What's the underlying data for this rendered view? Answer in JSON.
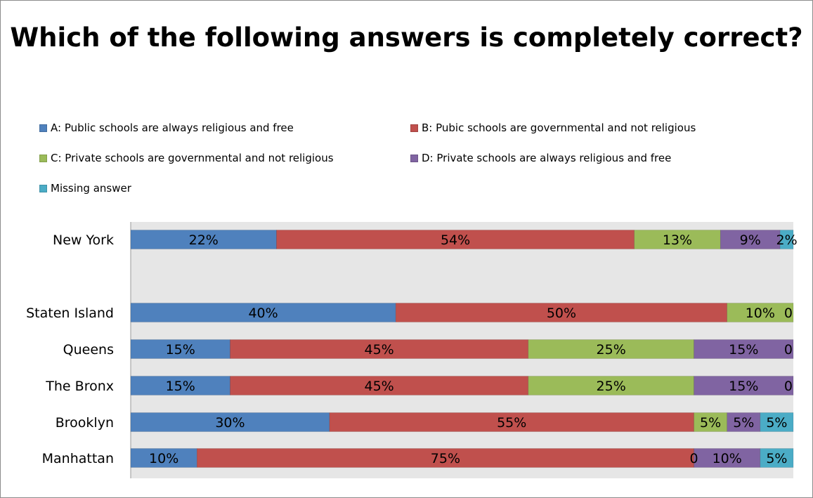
{
  "chart_data": {
    "type": "bar",
    "orientation": "horizontal",
    "stacked": true,
    "title": "Which of the following answers is completely correct?",
    "legend_position": "top",
    "grid": false,
    "xlim": [
      0,
      100
    ],
    "categories": [
      "New York",
      "",
      "Staten Island",
      "Queens",
      "The Bronx",
      "Brooklyn",
      "Manhattan"
    ],
    "series": [
      {
        "name": "A: Public schools are always religious and free",
        "color": "#4f81bd",
        "values": [
          22,
          null,
          40,
          15,
          15,
          30,
          10
        ],
        "labels": [
          "22%",
          "",
          "40%",
          "15%",
          "15%",
          "30%",
          "10%"
        ]
      },
      {
        "name": "B: Pubic schools are governmental and not religious",
        "color": "#c0504d",
        "values": [
          54,
          null,
          50,
          45,
          45,
          55,
          75
        ],
        "labels": [
          "54%",
          "",
          "50%",
          "45%",
          "45%",
          "55%",
          "75%"
        ]
      },
      {
        "name": "C: Private schools are governmental and not religious",
        "color": "#9bbb59",
        "values": [
          13,
          null,
          10,
          25,
          25,
          5,
          0
        ],
        "labels": [
          "13%",
          "",
          "10%",
          "25%",
          "25%",
          "5%",
          "0"
        ]
      },
      {
        "name": "D: Private schools are always religious and free",
        "color": "#8064a2",
        "values": [
          9,
          null,
          0,
          15,
          15,
          5,
          10
        ],
        "labels": [
          "9%",
          "",
          "0",
          "15%",
          "15%",
          "5%",
          "10%"
        ]
      },
      {
        "name": "Missing answer",
        "color": "#4bacc6",
        "values": [
          2,
          null,
          0,
          0,
          0,
          5,
          5
        ],
        "labels": [
          "2%",
          "",
          "",
          "0",
          "0",
          "5%",
          "5%"
        ]
      }
    ]
  }
}
